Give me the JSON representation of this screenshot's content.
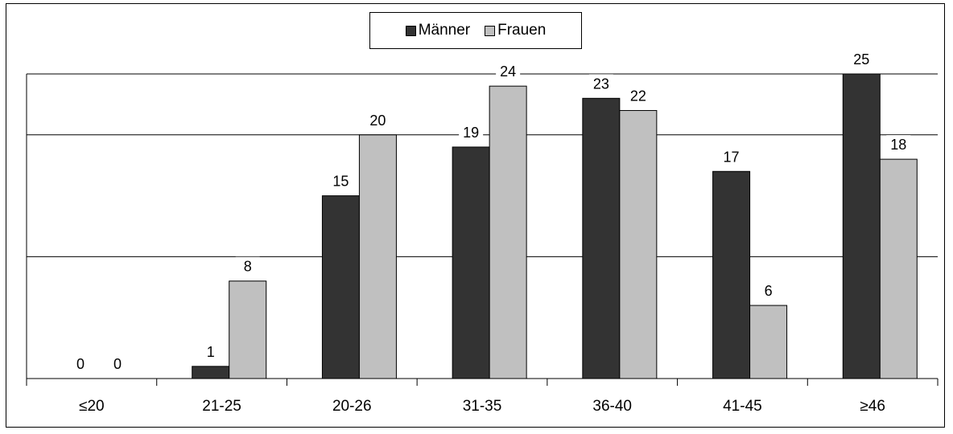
{
  "chart_data": {
    "type": "bar",
    "categories": [
      "≤20",
      "21-25",
      "20-26",
      "31-35",
      "36-40",
      "41-45",
      "≥46"
    ],
    "series": [
      {
        "name": "Männer",
        "values": [
          0,
          1,
          15,
          19,
          23,
          17,
          25
        ],
        "color": "#333333"
      },
      {
        "name": "Frauen",
        "values": [
          0,
          8,
          20,
          24,
          22,
          6,
          18
        ],
        "color": "#c0c0c0"
      }
    ],
    "ylim": [
      0,
      25
    ],
    "grid": true,
    "legend_position": "top-center",
    "data_labels": true
  }
}
